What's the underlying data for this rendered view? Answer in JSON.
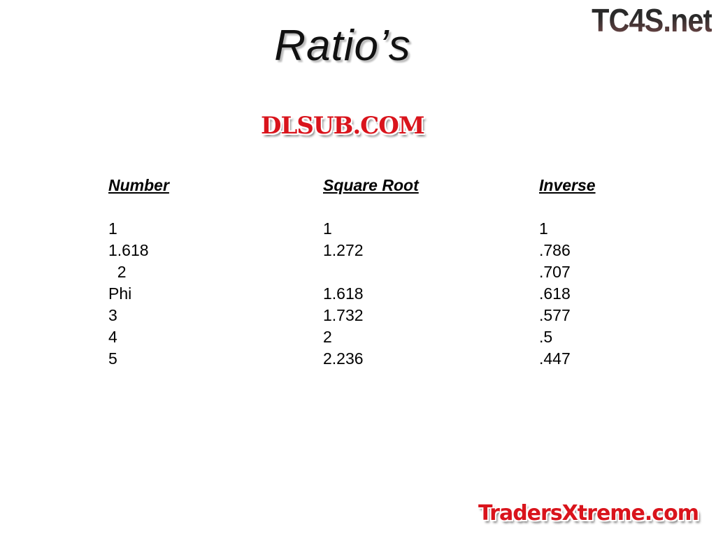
{
  "slide": {
    "title": "Ratio’s",
    "logos": {
      "top_right": "TC4S.net",
      "center_watermark": "DLSUB.COM",
      "bottom_right": "TradersXtreme.com"
    },
    "columns": [
      {
        "header": "Number",
        "values": [
          "1",
          "1.618",
          "  2",
          "Phi",
          "3",
          "4",
          "5"
        ]
      },
      {
        "header": "Square Root",
        "values": [
          "1",
          "1.272",
          "",
          "1.618",
          "1.732",
          "2",
          "2.236"
        ]
      },
      {
        "header": "Inverse",
        "values": [
          "1",
          ".786",
          ".707",
          ".618",
          ".577",
          ".5",
          ".447"
        ]
      }
    ]
  }
}
